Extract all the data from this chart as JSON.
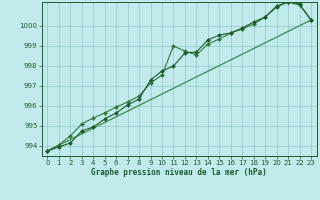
{
  "title": "Graphe pression niveau de la mer (hPa)",
  "background_color": "#c0eaec",
  "grid_color": "#90c8cc",
  "line_color1": "#1a5c2a",
  "line_color2": "#2d7a3a",
  "line_color3": "#3d8c42",
  "xlim": [
    -0.5,
    23.5
  ],
  "ylim": [
    993.5,
    1001.2
  ],
  "yticks": [
    994,
    995,
    996,
    997,
    998,
    999,
    1000
  ],
  "xticks": [
    0,
    1,
    2,
    3,
    4,
    5,
    6,
    7,
    8,
    9,
    10,
    11,
    12,
    13,
    14,
    15,
    16,
    17,
    18,
    19,
    20,
    21,
    22,
    23
  ],
  "series1_x": [
    0,
    1,
    2,
    3,
    4,
    5,
    6,
    7,
    8,
    9,
    10,
    11,
    12,
    13,
    14,
    15,
    16,
    17,
    18,
    19,
    20,
    21,
    22,
    23
  ],
  "series1_y": [
    993.75,
    993.95,
    994.15,
    994.75,
    994.95,
    995.35,
    995.65,
    996.05,
    996.35,
    997.3,
    997.75,
    998.0,
    998.65,
    998.7,
    999.3,
    999.55,
    999.65,
    999.9,
    1000.2,
    1000.45,
    1001.0,
    1001.2,
    1001.1,
    1000.3
  ],
  "series2_x": [
    0,
    1,
    2,
    3,
    4,
    5,
    6,
    7,
    8,
    9,
    10,
    11,
    12,
    13,
    14,
    15,
    16,
    17,
    18,
    19,
    20,
    21,
    22,
    23
  ],
  "series2_y": [
    993.75,
    994.05,
    994.5,
    995.1,
    995.4,
    995.65,
    995.95,
    996.2,
    996.5,
    997.15,
    997.55,
    999.0,
    998.75,
    998.55,
    999.1,
    999.35,
    999.65,
    999.85,
    1000.1,
    1000.45,
    1000.95,
    1001.2,
    1001.05,
    1000.3
  ],
  "series3_x": [
    0,
    23
  ],
  "series3_y": [
    993.75,
    1000.3
  ]
}
